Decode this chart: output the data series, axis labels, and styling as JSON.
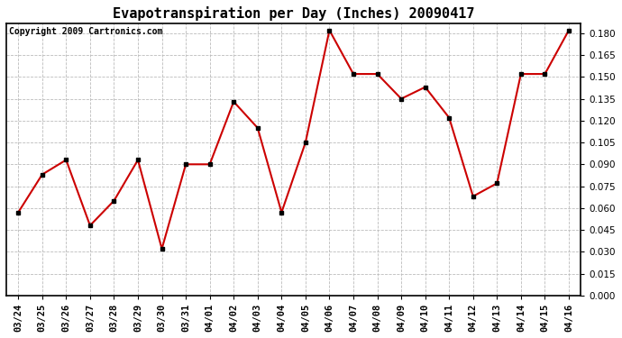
{
  "title": "Evapotranspiration per Day (Inches) 20090417",
  "copyright": "Copyright 2009 Cartronics.com",
  "x_labels": [
    "03/24",
    "03/25",
    "03/26",
    "03/27",
    "03/28",
    "03/29",
    "03/30",
    "03/31",
    "04/01",
    "04/02",
    "04/03",
    "04/04",
    "04/05",
    "04/06",
    "04/07",
    "04/08",
    "04/09",
    "04/10",
    "04/11",
    "04/12",
    "04/13",
    "04/14",
    "04/15",
    "04/16"
  ],
  "y_values": [
    0.057,
    0.083,
    0.093,
    0.048,
    0.065,
    0.093,
    0.032,
    0.09,
    0.09,
    0.133,
    0.115,
    0.057,
    0.105,
    0.182,
    0.152,
    0.152,
    0.135,
    0.143,
    0.122,
    0.068,
    0.077,
    0.152,
    0.152,
    0.182
  ],
  "line_color": "#cc0000",
  "marker": "s",
  "marker_size": 3,
  "marker_color": "#000000",
  "bg_color": "#ffffff",
  "plot_bg_color": "#ffffff",
  "grid_color": "#bbbbbb",
  "ylim": [
    0.0,
    0.187
  ],
  "ytick_min": 0.0,
  "ytick_max": 0.18,
  "ytick_step": 0.015,
  "title_fontsize": 11,
  "copyright_fontsize": 7,
  "tick_fontsize": 7.5
}
